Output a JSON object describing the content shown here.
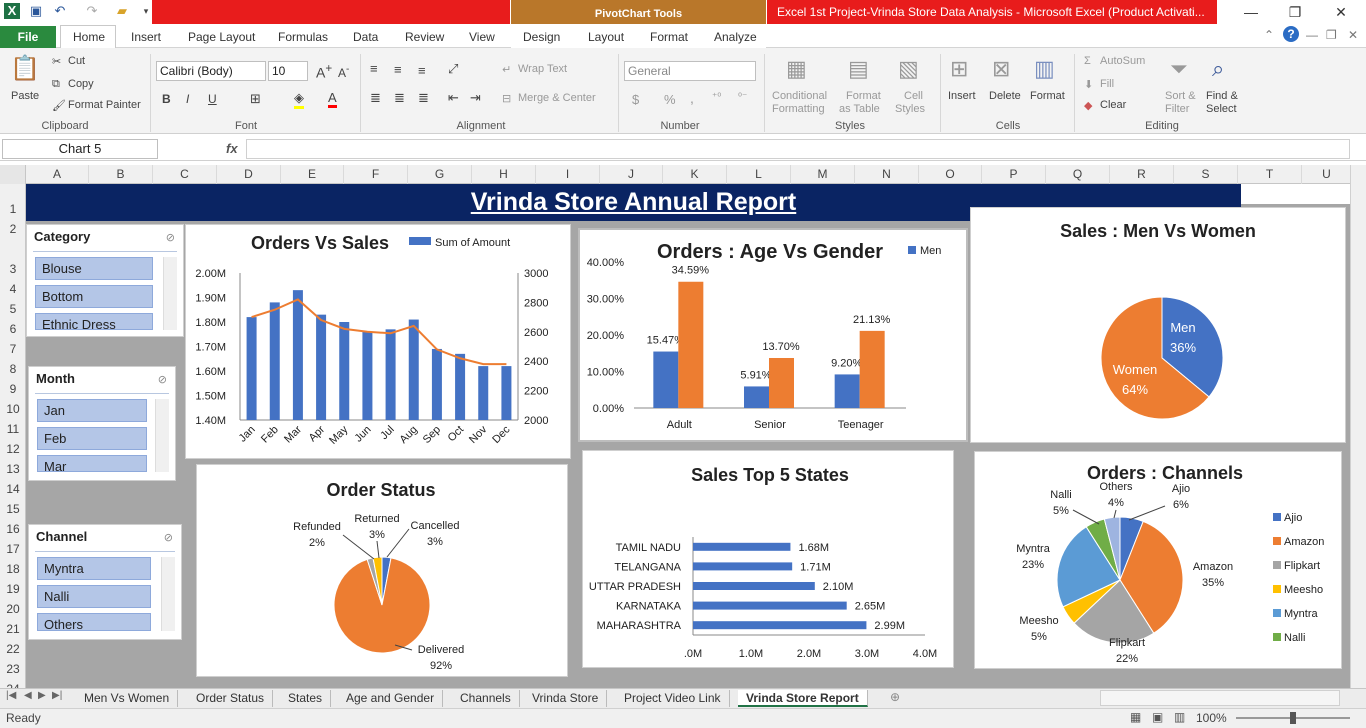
{
  "window": {
    "title": "Excel 1st Project-Vrinda Store Data Analysis  -  Microsoft Excel (Product Activati...",
    "context_tab_group": "PivotChart Tools",
    "controls": {
      "minimize": "—",
      "restore": "❐",
      "close": "✕"
    },
    "help": "?"
  },
  "ribbon_tabs": [
    "File",
    "Home",
    "Insert",
    "Page Layout",
    "Formulas",
    "Data",
    "Review",
    "View",
    "Design",
    "Layout",
    "Format",
    "Analyze"
  ],
  "ribbon": {
    "clipboard": {
      "paste": "Paste",
      "cut": "Cut",
      "copy": "Copy",
      "format_painter": "Format Painter",
      "label": "Clipboard"
    },
    "font": {
      "name": "Calibri (Body)",
      "size": "10",
      "bold": "B",
      "italic": "I",
      "underline": "U",
      "label": "Font"
    },
    "alignment": {
      "wrap": "Wrap Text",
      "merge": "Merge & Center",
      "label": "Alignment"
    },
    "number": {
      "format": "General",
      "currency": "$",
      "percent": "%",
      "comma": ",",
      "label": "Number"
    },
    "styles": {
      "conditional": "Conditional",
      "conditional2": "Formatting",
      "format_table": "Format",
      "format_table2": "as Table",
      "cell_styles": "Cell",
      "cell_styles2": "Styles",
      "label": "Styles"
    },
    "cells": {
      "insert": "Insert",
      "delete": "Delete",
      "format": "Format",
      "label": "Cells"
    },
    "editing": {
      "autosum": "AutoSum",
      "fill": "Fill",
      "clear": "Clear",
      "sort": "Sort &",
      "sort2": "Filter",
      "find": "Find &",
      "find2": "Select",
      "label": "Editing"
    }
  },
  "formula_bar": {
    "name_box": "Chart 5",
    "fx": "fx",
    "value": ""
  },
  "columns": [
    "A",
    "B",
    "C",
    "D",
    "E",
    "F",
    "G",
    "H",
    "I",
    "J",
    "K",
    "L",
    "M",
    "N",
    "O",
    "P",
    "Q",
    "R",
    "S",
    "T",
    "U"
  ],
  "rows": [
    "1",
    "2",
    "3",
    "4",
    "5",
    "6",
    "7",
    "8",
    "9",
    "10",
    "11",
    "12",
    "13",
    "14",
    "15",
    "16",
    "17",
    "18",
    "19",
    "20",
    "21",
    "22",
    "23",
    "24"
  ],
  "banner_title": "Vrinda Store Annual Report",
  "slicers": {
    "category": {
      "title": "Category",
      "items": [
        "Blouse",
        "Bottom",
        "Ethnic Dress"
      ]
    },
    "month": {
      "title": "Month",
      "items": [
        "Jan",
        "Feb",
        "Mar"
      ]
    },
    "channel": {
      "title": "Channel",
      "items": [
        "Myntra",
        "Nalli",
        "Others"
      ]
    }
  },
  "chart_data": [
    {
      "type": "bar",
      "title": "Orders Vs Sales",
      "legend": [
        "Sum of Amount"
      ],
      "legend_position": "top-right",
      "categories": [
        "Jan",
        "Feb",
        "Mar",
        "Apr",
        "May",
        "Jun",
        "Jul",
        "Aug",
        "Sep",
        "Oct",
        "Nov",
        "Dec"
      ],
      "series": [
        {
          "name": "Sum of Amount",
          "type": "bar",
          "axis": "left",
          "values": [
            1.82,
            1.88,
            1.93,
            1.83,
            1.8,
            1.76,
            1.77,
            1.81,
            1.69,
            1.67,
            1.62,
            1.62
          ],
          "color": "#4472c4"
        },
        {
          "type": "line",
          "axis": "right",
          "values": [
            2700,
            2750,
            2820,
            2680,
            2620,
            2600,
            2590,
            2640,
            2480,
            2420,
            2380,
            2380
          ],
          "color": "#ed7d31"
        }
      ],
      "left_ticks": [
        "1.40M",
        "1.50M",
        "1.60M",
        "1.70M",
        "1.80M",
        "1.90M",
        "2.00M"
      ],
      "right_ticks": [
        "2000",
        "2200",
        "2400",
        "2600",
        "2800",
        "3000"
      ],
      "ylim": [
        1.4,
        2.0
      ],
      "y2lim": [
        2000,
        3000
      ]
    },
    {
      "type": "bar",
      "title": "Orders : Age Vs Gender",
      "legend": [
        "Men"
      ],
      "legend_position": "top-right",
      "categories": [
        "Adult",
        "Senior",
        "Teenager"
      ],
      "series": [
        {
          "name": "Men",
          "values": [
            15.47,
            5.91,
            9.2
          ],
          "labels": [
            "15.47%",
            "5.91%",
            "9.20%"
          ],
          "color": "#4472c4"
        },
        {
          "values": [
            34.59,
            13.7,
            21.13
          ],
          "labels": [
            "34.59%",
            "13.70%",
            "21.13%"
          ],
          "color": "#ed7d31"
        }
      ],
      "y_ticks": [
        "0.00%",
        "10.00%",
        "20.00%",
        "30.00%",
        "40.00%"
      ],
      "ylim": [
        0,
        40
      ]
    },
    {
      "type": "pie",
      "title": "Sales : Men Vs Women",
      "slices": [
        {
          "label": "Men",
          "pct": "36%",
          "value": 36,
          "color": "#4472c4"
        },
        {
          "label": "Women",
          "pct": "64%",
          "value": 64,
          "color": "#ed7d31"
        }
      ]
    },
    {
      "type": "pie",
      "title": "Order Status",
      "slices": [
        {
          "label": "Cancelled",
          "pct": "3%",
          "value": 3,
          "color": "#4472c4"
        },
        {
          "label": "Delivered",
          "pct": "92%",
          "value": 92,
          "color": "#ed7d31"
        },
        {
          "label": "Refunded",
          "pct": "2%",
          "value": 2,
          "color": "#a5a5a5"
        },
        {
          "label": "Returned",
          "pct": "3%",
          "value": 3,
          "color": "#ffc000"
        }
      ]
    },
    {
      "type": "bar",
      "orientation": "horizontal",
      "title": "Sales Top 5 States",
      "categories": [
        "TAMIL NADU",
        "TELANGANA",
        "UTTAR PRADESH",
        "KARNATAKA",
        "MAHARASHTRA"
      ],
      "values": [
        1.68,
        1.71,
        2.1,
        2.65,
        2.99
      ],
      "labels": [
        "1.68M",
        "1.71M",
        "2.10M",
        "2.65M",
        "2.99M"
      ],
      "x_ticks": [
        ".0M",
        "1.0M",
        "2.0M",
        "3.0M",
        "4.0M"
      ],
      "xlim": [
        0,
        4
      ],
      "color": "#4472c4"
    },
    {
      "type": "pie",
      "title": "Orders : Channels",
      "legend_position": "right",
      "slices": [
        {
          "label": "Ajio",
          "pct": "6%",
          "value": 6,
          "color": "#4472c4"
        },
        {
          "label": "Amazon",
          "pct": "35%",
          "value": 35,
          "color": "#ed7d31"
        },
        {
          "label": "Flipkart",
          "pct": "22%",
          "value": 22,
          "color": "#a5a5a5"
        },
        {
          "label": "Meesho",
          "pct": "5%",
          "value": 5,
          "color": "#ffc000"
        },
        {
          "label": "Myntra",
          "pct": "23%",
          "value": 23,
          "color": "#5b9bd5"
        },
        {
          "label": "Nalli",
          "pct": "5%",
          "value": 5,
          "color": "#70ad47"
        },
        {
          "label": "Others",
          "pct": "4%",
          "value": 4,
          "color": "#9eb4e0"
        }
      ]
    }
  ],
  "sheet_tabs": [
    "Men Vs Women",
    "Order Status",
    "States",
    "Age and Gender",
    "Channels",
    "Vrinda Store",
    "Project Video Link",
    "Vrinda Store Report"
  ],
  "active_sheet": "Vrinda Store Report",
  "status": {
    "ready": "Ready",
    "zoom": "100%"
  }
}
